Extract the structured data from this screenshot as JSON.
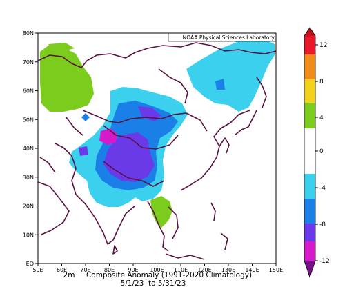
{
  "credit": "NOAA Physical Sciences Laboratory",
  "caption": {
    "line1_var": "2m",
    "line1_text": "Composite Anomaly (1991-2020 Climatology)",
    "line2_text": "5/1/23  to 5/31/23"
  },
  "map": {
    "lon_range": [
      50,
      150
    ],
    "lat_range": [
      0,
      80
    ],
    "lon_ticks": [
      "50E",
      "60E",
      "70E",
      "80E",
      "90E",
      "100E",
      "110E",
      "120E",
      "130E",
      "140E",
      "150E"
    ],
    "lat_ticks": [
      "EQ",
      "10N",
      "20N",
      "30N",
      "40N",
      "50N",
      "60N",
      "70N",
      "80N"
    ]
  },
  "colorbar": {
    "ticks": [
      "12",
      "8",
      "4",
      "0",
      "-4",
      "-8",
      "-12"
    ],
    "colors": {
      "red": "#e8182a",
      "orange": "#f08a18",
      "yellow": "#f2d21a",
      "green": "#7ccc1e",
      "white": "#ffffff",
      "lightblue": "#3ad0ee",
      "blue": "#1a7fe6",
      "purple": "#6a3ae8",
      "magenta": "#d61ac9",
      "violet": "#7a0f8a"
    }
  },
  "anomaly_regions": [
    {
      "name": "warm-siberia-west",
      "value": 4,
      "color": "#7ccc1e"
    },
    {
      "name": "warm-indochina",
      "value": 4,
      "color": "#7ccc1e"
    },
    {
      "name": "cool-central-asia",
      "value": -4,
      "color": "#3ad0ee"
    },
    {
      "name": "cool-east-siberia",
      "value": -4,
      "color": "#3ad0ee"
    },
    {
      "name": "cold-tibet",
      "value": -8,
      "color": "#6a3ae8"
    },
    {
      "name": "very-cold-tarim",
      "value": -10,
      "color": "#d61ac9"
    }
  ]
}
